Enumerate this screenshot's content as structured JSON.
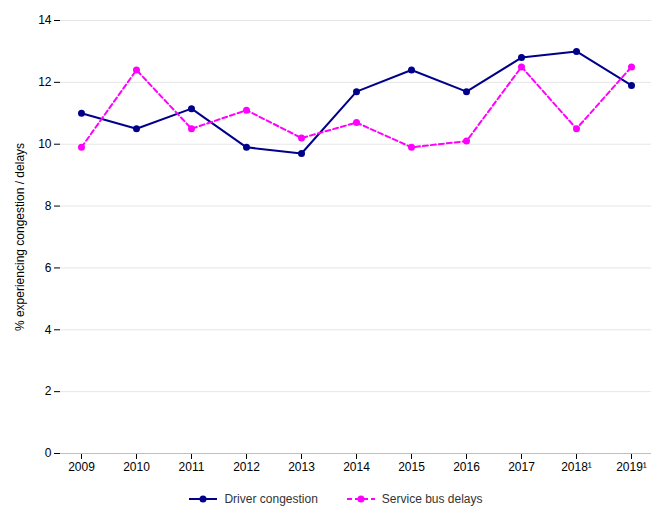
{
  "chart_data": {
    "type": "line",
    "categories": [
      "2009",
      "2010",
      "2011",
      "2012",
      "2013",
      "2014",
      "2015",
      "2016",
      "2017",
      "2018¹",
      "2019¹"
    ],
    "series": [
      {
        "name": "Driver congestion",
        "color": "#00008B",
        "line_style": "solid",
        "marker": "circle",
        "values": [
          11.0,
          10.5,
          11.15,
          9.9,
          9.7,
          11.7,
          12.4,
          11.7,
          12.8,
          13.0,
          11.9
        ]
      },
      {
        "name": "Service bus delays",
        "color": "#FF00FF",
        "line_style": "dashed",
        "marker": "circle",
        "values": [
          9.9,
          12.4,
          10.5,
          11.1,
          10.2,
          10.7,
          9.9,
          10.1,
          12.5,
          10.5,
          12.5
        ]
      }
    ],
    "ylabel": "% experiencing congestion / delays",
    "ylim": [
      0,
      14
    ],
    "yticks": [
      0,
      2,
      4,
      6,
      8,
      10,
      12,
      14
    ],
    "grid": true,
    "legend": "bottom"
  }
}
